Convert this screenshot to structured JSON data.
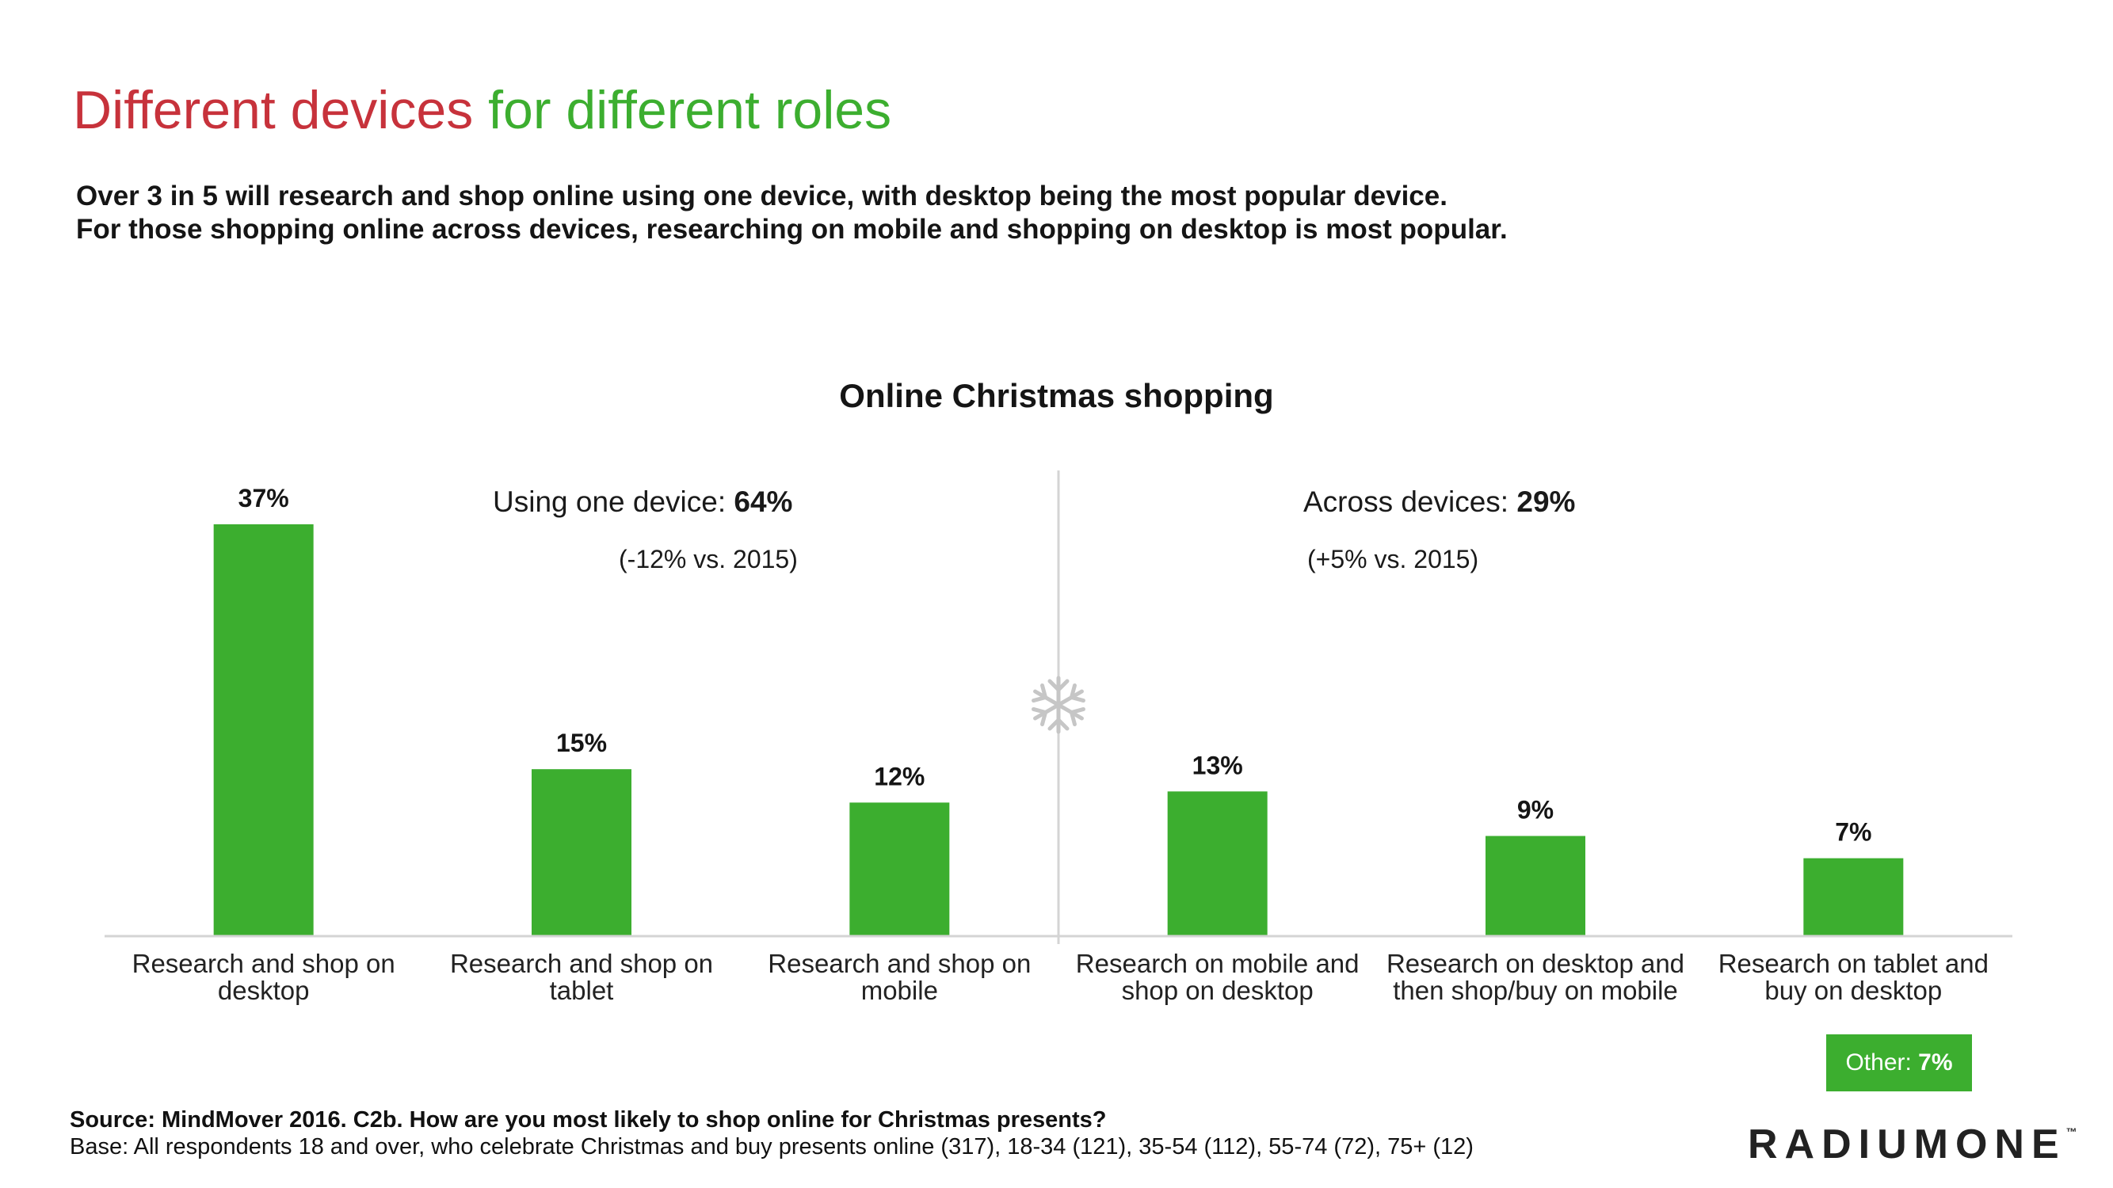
{
  "header": {
    "title_part1": "Different devices",
    "title_part2": " for different roles",
    "subtitle_line1": "Over 3 in 5 will research and shop online using one device, with desktop being the most popular device.",
    "subtitle_line2": "For those shopping online across devices, researching on mobile and shopping on desktop is most popular."
  },
  "colors": {
    "title_red": "#c7323b",
    "accent_green": "#3cae2f",
    "axis_gray": "#d4d4d4"
  },
  "groups": {
    "one_device": {
      "label": "Using one device: ",
      "value": "64%",
      "note": "(-12% vs. 2015)"
    },
    "across_devices": {
      "label": "Across devices: ",
      "value": "29%",
      "note": "(+5% vs. 2015)"
    },
    "divider_icon": "snowflake-icon"
  },
  "other": {
    "label": "Other: ",
    "value": "7%"
  },
  "footer": {
    "source": "Source: MindMover 2016. C2b. How are you most likely to shop online for Christmas presents?",
    "base": "Base: All respondents 18 and over, who celebrate Christmas and buy presents online (317), 18-34 (121), 35-54 (112), 55-74 (72), 75+ (12)",
    "logo": "RADIUMONE",
    "logo_mark": "™"
  },
  "chart_data": {
    "type": "bar",
    "title": "Online Christmas shopping",
    "categories": [
      [
        "Research and shop on",
        "desktop"
      ],
      [
        "Research and shop on",
        "tablet"
      ],
      [
        "Research and shop on",
        "mobile"
      ],
      [
        "Research on mobile and",
        "shop on desktop"
      ],
      [
        "Research on desktop and",
        "then shop/buy on mobile"
      ],
      [
        "Research on tablet and",
        "buy on desktop"
      ]
    ],
    "values": [
      37,
      15,
      12,
      13,
      9,
      7
    ],
    "value_labels": [
      "37%",
      "15%",
      "12%",
      "13%",
      "9%",
      "7%"
    ],
    "ylim": [
      0,
      40
    ],
    "grid": false,
    "legend": "none"
  }
}
